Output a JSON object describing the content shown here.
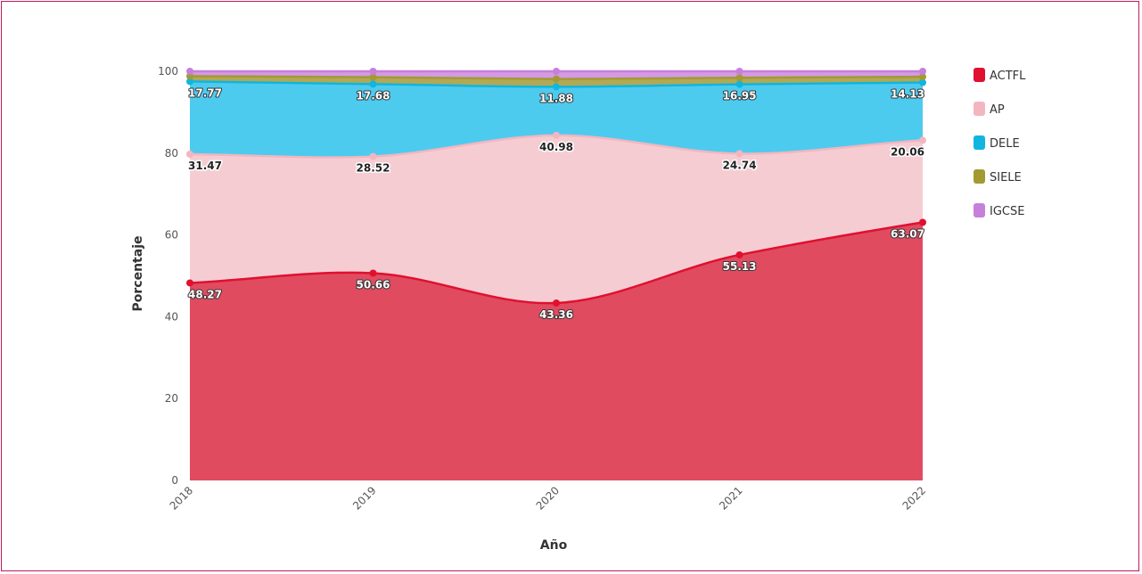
{
  "chart_data": {
    "type": "area",
    "stacked": true,
    "x": [
      "2018",
      "2019",
      "2020",
      "2021",
      "2022"
    ],
    "xlabel": "Año",
    "ylabel": "Porcentaje",
    "ylim": [
      0,
      100
    ],
    "yticks": [
      "0",
      "20",
      "40",
      "60",
      "80",
      "100"
    ],
    "grid": true,
    "legend_position": "right",
    "series": [
      {
        "name": "ACTFL",
        "color": "#e0102f",
        "fill": "#e04b60",
        "values": [
          48.27,
          50.66,
          43.36,
          55.13,
          63.07
        ],
        "labels": [
          "48.27",
          "50.66",
          "43.36",
          "55.13",
          "63.07"
        ],
        "label_style": "light"
      },
      {
        "name": "AP",
        "color": "#f3b6c0",
        "fill": "#f6ccd3",
        "values": [
          31.47,
          28.52,
          40.98,
          24.74,
          20.06
        ],
        "labels": [
          "31.47",
          "28.52",
          "40.98",
          "24.74",
          "20.06"
        ],
        "label_style": "dark"
      },
      {
        "name": "DELE",
        "color": "#10b5e0",
        "fill": "#4dcbef",
        "values": [
          17.77,
          17.68,
          11.88,
          16.95,
          14.13
        ],
        "labels": [
          "17.77",
          "17.68",
          "11.88",
          "16.95",
          "14.13"
        ],
        "label_style": "light"
      },
      {
        "name": "SIELE",
        "color": "#a39a32",
        "fill": "#b1a955",
        "values": [
          1.3,
          1.7,
          1.9,
          1.6,
          1.4
        ],
        "labels": null,
        "label_style": "none"
      },
      {
        "name": "IGCSE",
        "color": "#c77fdc",
        "fill": "#d49ae4",
        "values": [
          1.19,
          1.44,
          1.88,
          1.58,
          1.34
        ],
        "labels": null,
        "label_style": "none"
      }
    ]
  }
}
